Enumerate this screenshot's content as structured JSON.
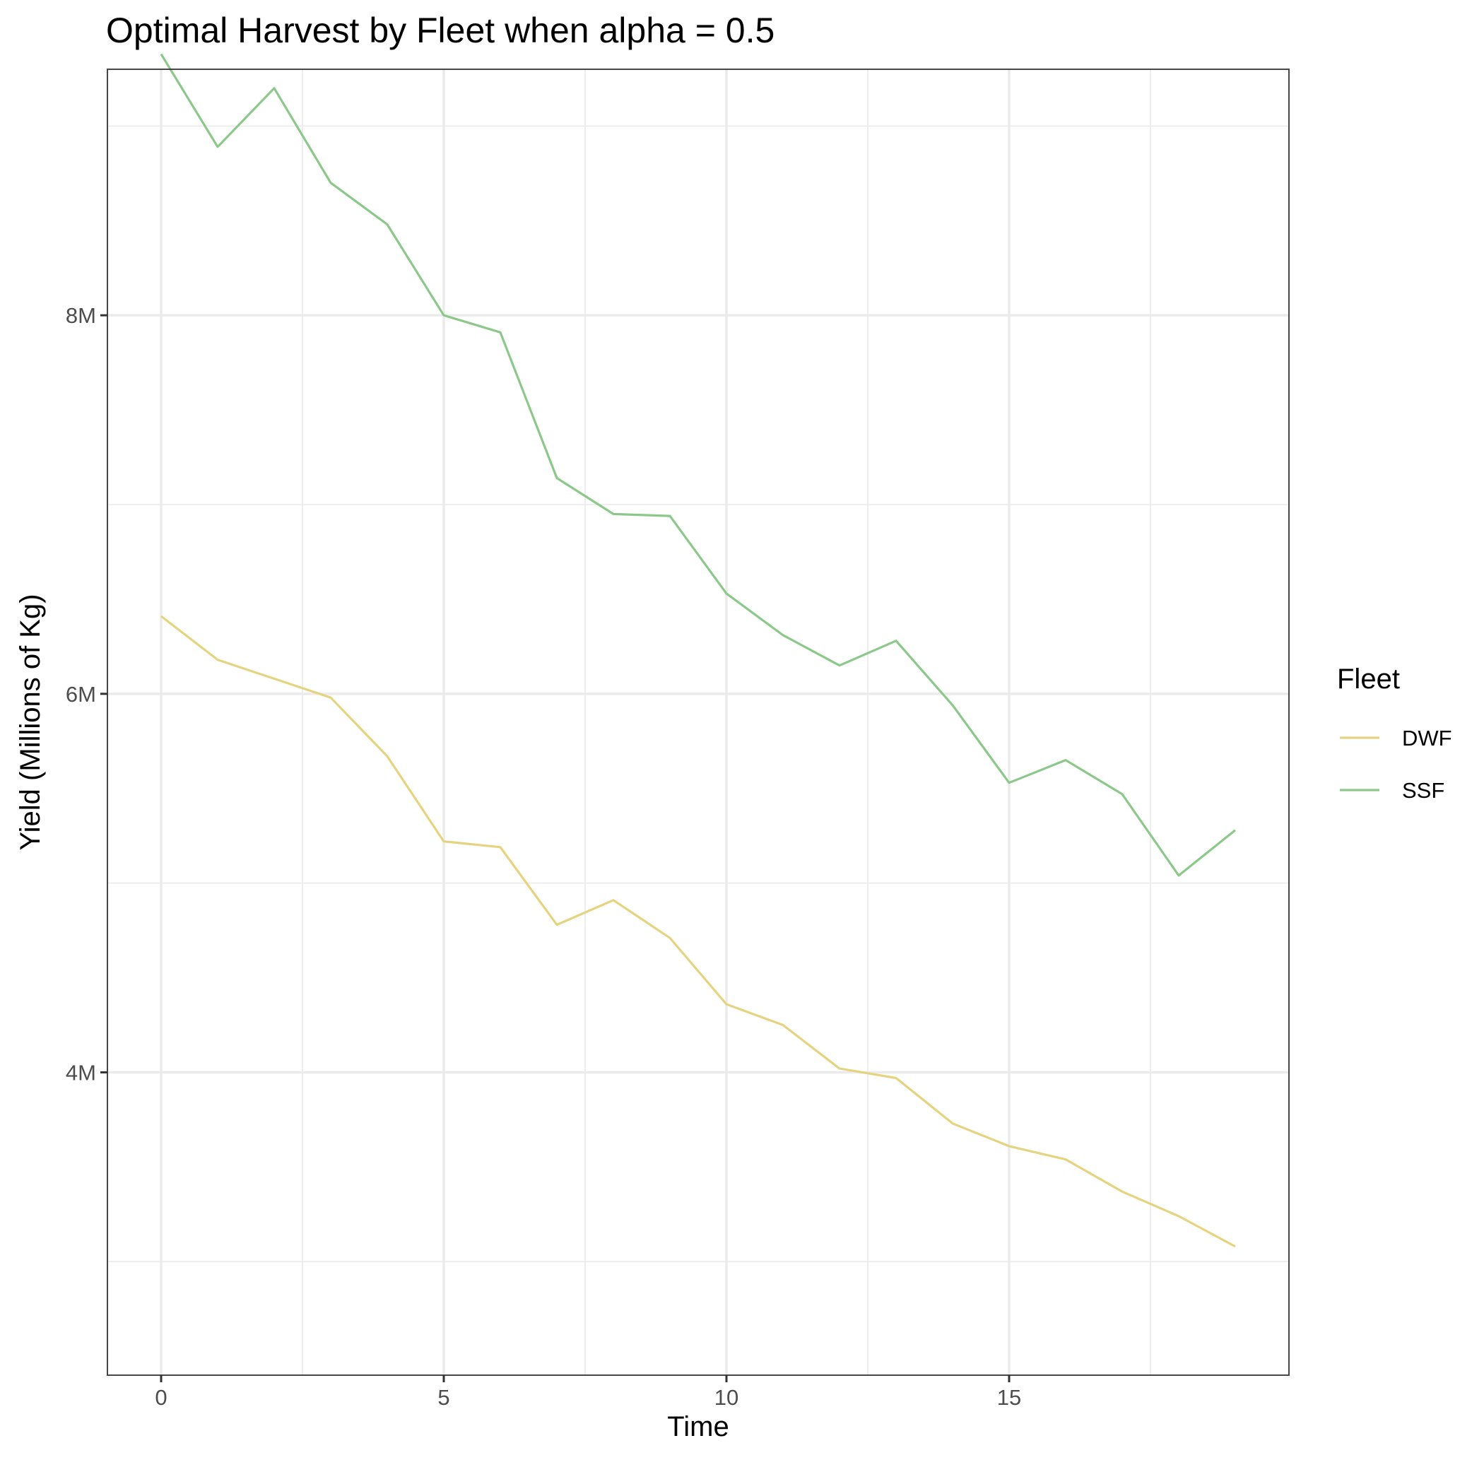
{
  "chart_data": {
    "type": "line",
    "title": "Optimal Harvest by Fleet when alpha = 0.5",
    "xlabel": "Time",
    "ylabel": "Yield (Millions of Kg)",
    "xlim": [
      -0.95,
      19.95
    ],
    "ylim": [
      2.4,
      9.3
    ],
    "x_ticks": [
      0,
      5,
      10,
      15
    ],
    "x_tick_labels": [
      "0",
      "5",
      "10",
      "15"
    ],
    "x_minor": [
      2.5,
      7.5,
      12.5,
      17.5
    ],
    "y_ticks": [
      4,
      6,
      8
    ],
    "y_tick_labels": [
      "4M",
      "6M",
      "8M"
    ],
    "y_minor": [
      3,
      5,
      7,
      9
    ],
    "grid": true,
    "legend": {
      "title": "Fleet",
      "position": "right"
    },
    "x": [
      0,
      1,
      2,
      3,
      4,
      5,
      6,
      7,
      8,
      9,
      10,
      11,
      12,
      13,
      14,
      15,
      16,
      17,
      18,
      19
    ],
    "series": [
      {
        "name": "DWF",
        "color": "#e6d380",
        "values": [
          6.41,
          6.18,
          6.08,
          5.98,
          5.67,
          5.22,
          5.19,
          4.78,
          4.91,
          4.71,
          4.36,
          4.25,
          4.02,
          3.97,
          3.73,
          3.61,
          3.54,
          3.37,
          3.24,
          3.08
        ]
      },
      {
        "name": "SSF",
        "color": "#8cc88a",
        "values": [
          9.38,
          8.89,
          9.2,
          8.7,
          8.48,
          8.0,
          7.91,
          7.14,
          6.95,
          6.94,
          6.53,
          6.31,
          6.15,
          6.28,
          5.94,
          5.53,
          5.65,
          5.47,
          5.04,
          5.28
        ]
      }
    ]
  }
}
